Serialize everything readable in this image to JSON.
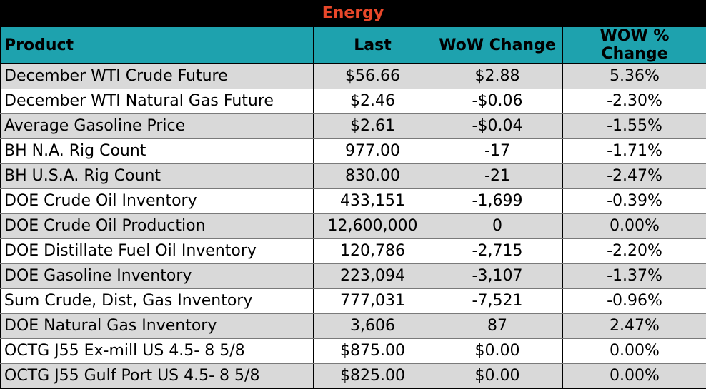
{
  "title": "Energy",
  "colors": {
    "title_bg": "#000000",
    "title_text": "#e8482a",
    "header_bg": "#1ea2ae",
    "row_shade": "#d9d9d9",
    "row_plain": "#ffffff"
  },
  "headers": {
    "product": "Product",
    "last": "Last",
    "wow_change": "WoW Change",
    "wow_pct_change": "WOW % Change"
  },
  "rows": [
    {
      "product": "December WTI Crude Future",
      "last": "$56.66",
      "wow_change": "$2.88",
      "wow_pct_change": "5.36%"
    },
    {
      "product": "December WTI Natural Gas Future",
      "last": "$2.46",
      "wow_change": "-$0.06",
      "wow_pct_change": "-2.30%"
    },
    {
      "product": "Average Gasoline Price",
      "last": "$2.61",
      "wow_change": "-$0.04",
      "wow_pct_change": "-1.55%"
    },
    {
      "product": "BH N.A. Rig Count",
      "last": "977.00",
      "wow_change": "-17",
      "wow_pct_change": "-1.71%"
    },
    {
      "product": "BH U.S.A. Rig Count",
      "last": "830.00",
      "wow_change": "-21",
      "wow_pct_change": "-2.47%"
    },
    {
      "product": "DOE Crude Oil Inventory",
      "last": "433,151",
      "wow_change": "-1,699",
      "wow_pct_change": "-0.39%"
    },
    {
      "product": "DOE Crude Oil Production",
      "last": "12,600,000",
      "wow_change": "0",
      "wow_pct_change": "0.00%"
    },
    {
      "product": "DOE Distillate Fuel Oil Inventory",
      "last": "120,786",
      "wow_change": "-2,715",
      "wow_pct_change": "-2.20%"
    },
    {
      "product": "DOE Gasoline Inventory",
      "last": "223,094",
      "wow_change": "-3,107",
      "wow_pct_change": "-1.37%"
    },
    {
      "product": "Sum Crude, Dist, Gas Inventory",
      "last": "777,031",
      "wow_change": "-7,521",
      "wow_pct_change": "-0.96%"
    },
    {
      "product": "DOE Natural Gas Inventory",
      "last": "3,606",
      "wow_change": "87",
      "wow_pct_change": "2.47%"
    },
    {
      "product": "OCTG J55 Ex-mill US 4.5- 8 5/8",
      "last": "$875.00",
      "wow_change": "$0.00",
      "wow_pct_change": "0.00%"
    },
    {
      "product": "OCTG J55 Gulf Port US 4.5- 8 5/8",
      "last": "$825.00",
      "wow_change": "$0.00",
      "wow_pct_change": "0.00%"
    }
  ]
}
